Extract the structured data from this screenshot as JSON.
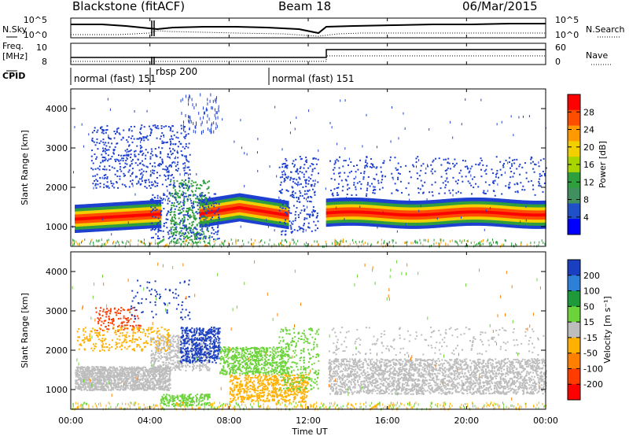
{
  "header": {
    "station": "Blackstone (fitACF)",
    "beam": "Beam 18",
    "date": "06/Mar/2015"
  },
  "chart_data": {
    "type": "heatmap",
    "x": {
      "label": "Time UT",
      "ticks": [
        "00:00",
        "04:00",
        "08:00",
        "12:00",
        "16:00",
        "20:00",
        "00:00"
      ],
      "range_hours": [
        0,
        24
      ]
    },
    "panels": {
      "nsky": {
        "left_label": "N.Sky",
        "right_label": "N.Search",
        "left_ticks": [
          "10^5",
          "10^0"
        ],
        "right_ticks": [
          "10^5",
          "10^0"
        ]
      },
      "freq": {
        "left_label_1": "Freq.",
        "left_label_2": "[MHz]",
        "left_ticks": [
          "10",
          "8"
        ],
        "right_label": "Nave",
        "right_ticks": [
          "60",
          "0"
        ],
        "freq_steps": [
          {
            "from": 0,
            "to": 13,
            "mhz": 9.3
          },
          {
            "from": 13,
            "to": 24,
            "mhz": 10.6
          }
        ]
      },
      "cpid": {
        "label": "CPID",
        "modes": [
          {
            "name": "normal (fast) 151",
            "start": 0,
            "end": 4.0
          },
          {
            "name": "rbsp 200",
            "start": 4.0,
            "end": 10.0
          },
          {
            "name": "normal (fast) 151",
            "start": 10.0,
            "end": 24
          }
        ]
      },
      "power": {
        "ylabel": "Slant Range [km]",
        "yticks": [
          1000,
          2000,
          3000,
          4000
        ],
        "yrange_km": [
          500,
          4500
        ],
        "colorbar_label": "Power [dB]",
        "colorbar_ticks": [
          "28",
          "24",
          "20",
          "16",
          "12",
          "8",
          "4"
        ],
        "colorbar_colors": [
          "#ff0000",
          "#ff4d00",
          "#ff9900",
          "#f2d000",
          "#a8d400",
          "#2f9e3c",
          "#3f8f5f",
          "#2050c8",
          "#0000ff"
        ]
      },
      "velocity": {
        "ylabel": "Slant Range [km]",
        "yticks": [
          1000,
          2000,
          3000,
          4000
        ],
        "yrange_km": [
          500,
          4500
        ],
        "colorbar_label": "Velocity [m s⁻¹]",
        "colorbar_ticks": [
          "200",
          "100",
          "50",
          "15",
          "-15",
          "-50",
          "-100",
          "-200"
        ],
        "colorbar_colors": [
          "#1a3fc0",
          "#2e7fd8",
          "#1f9a3a",
          "#6cd33a",
          "#bdbdbd",
          "#ffb000",
          "#ff7f00",
          "#ff3c00",
          "#ff0000"
        ]
      }
    }
  }
}
